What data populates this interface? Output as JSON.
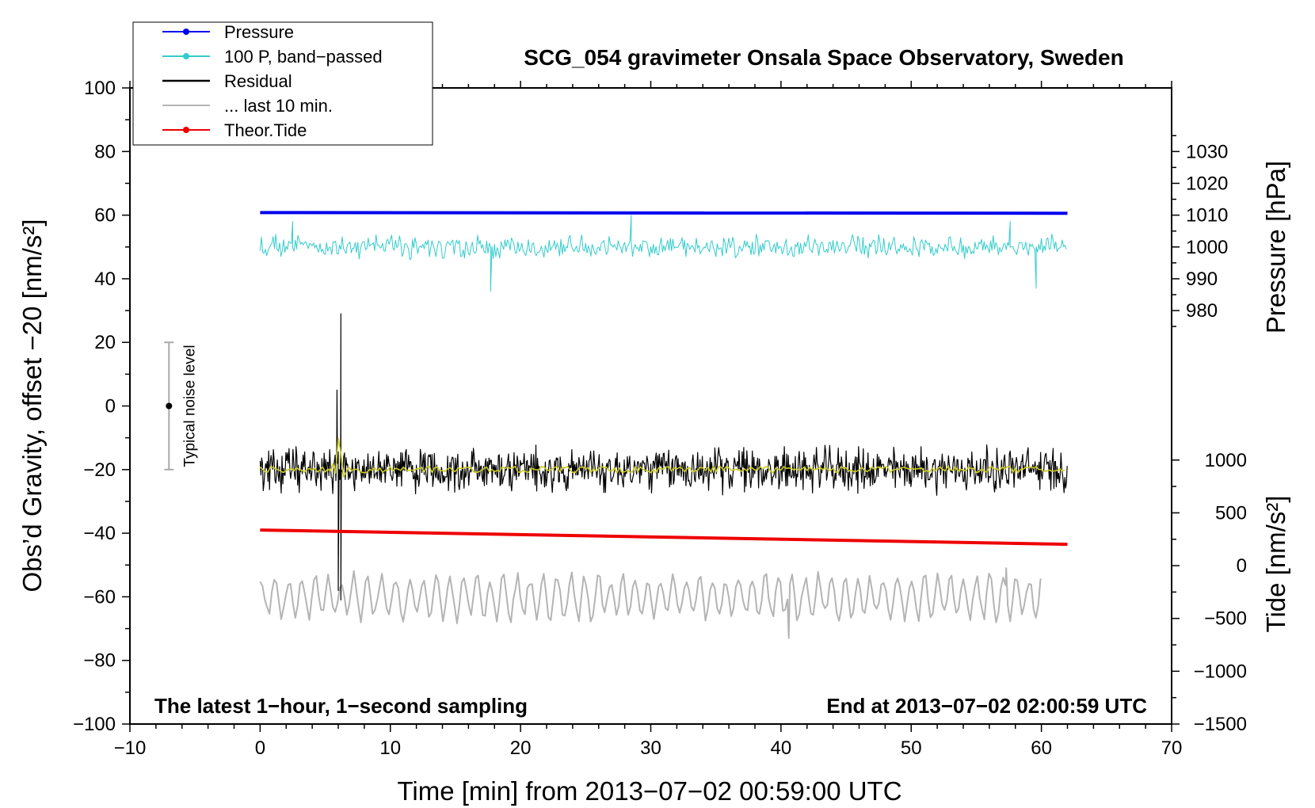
{
  "chart_data": {
    "type": "line",
    "title": "SCG_054 gravimeter Onsala Space Observatory, Sweden",
    "xlabel": "Time [min] from 2013−07−02 00:59:00 UTC",
    "ylabel_left": "Obs’d Gravity, offset −20 [nm/s²]",
    "ylabel_right_top": "Pressure [hPa]",
    "ylabel_right_bottom": "Tide [nm/s²]",
    "xlim": [
      -10,
      70
    ],
    "ylim": [
      -100,
      100
    ],
    "x_ticks": [
      -10,
      0,
      10,
      20,
      30,
      40,
      50,
      60,
      70
    ],
    "x_tick_labels": [
      "−10",
      "0",
      "10",
      "20",
      "30",
      "40",
      "50",
      "60",
      "70"
    ],
    "y_ticks": [
      -100,
      -80,
      -60,
      -40,
      -20,
      0,
      20,
      40,
      60,
      80,
      100
    ],
    "y_tick_labels": [
      "−100",
      "−80",
      "−60",
      "−40",
      "−20",
      "0",
      "20",
      "40",
      "60",
      "80",
      "100"
    ],
    "pressure_axis": {
      "ticks": [
        980,
        990,
        1000,
        1010,
        1020,
        1030
      ],
      "tick_labels": [
        "980",
        "990",
        "1000",
        "1010",
        "1020",
        "1030"
      ],
      "map": {
        "value_a": 1010,
        "y_a": 60,
        "value_b": 1030,
        "y_b": 80
      }
    },
    "tide_axis": {
      "ticks": [
        -1500,
        -1000,
        -500,
        0,
        500,
        1000
      ],
      "tick_labels": [
        "−1500",
        "−1000",
        "−500",
        "0",
        "500",
        "1000"
      ],
      "map": {
        "value_a": -1500,
        "y_a": -100,
        "value_b": 1000,
        "y_b": -17
      }
    },
    "series": [
      {
        "name": "Pressure",
        "color": "#0000ee",
        "kind": "line",
        "x_range": [
          0,
          62
        ],
        "y_start": 60.8,
        "y_end": 60.6
      },
      {
        "name": "100 P, band−passed",
        "color": "#33cccc",
        "kind": "noise",
        "x_range": [
          0,
          62
        ],
        "center": 50,
        "amplitude": 3.5,
        "spikes": [
          {
            "x": 17.7,
            "y": 36
          },
          {
            "x": 28.5,
            "y": 60
          },
          {
            "x": 59.6,
            "y": 37
          },
          {
            "x": 2.5,
            "y": 58
          },
          {
            "x": 57.6,
            "y": 58
          }
        ]
      },
      {
        "name": "Residual",
        "color": "#000000",
        "kind": "noise",
        "x_range": [
          0,
          62
        ],
        "center": -20,
        "amplitude": 7,
        "spikes": [
          {
            "x": 6.2,
            "y": 29
          },
          {
            "x": 6.2,
            "y": -61
          },
          {
            "x": 5.9,
            "y": 5
          },
          {
            "x": 6.0,
            "y": -58
          }
        ]
      },
      {
        "name": "... last 10 min.",
        "color": "#b4b4b4",
        "kind": "noise",
        "x_range": [
          0,
          60
        ],
        "center": -60,
        "amplitude": 7,
        "spikes": [
          {
            "x": 57.3,
            "y": -51
          },
          {
            "x": 40.6,
            "y": -73
          }
        ]
      },
      {
        "name": "Theor.Tide",
        "color": "#ee0000",
        "kind": "line",
        "x_range": [
          0,
          62
        ],
        "y_start": -39,
        "y_end": -43.5
      },
      {
        "name": "Smoothed residual",
        "color": "#cccc22",
        "kind": "noise",
        "x_range": [
          0,
          62
        ],
        "center": -20,
        "amplitude": 1,
        "in_legend": false
      }
    ],
    "noise_level": {
      "label": "Typical noise level",
      "x": -7,
      "center": 0,
      "low": -20,
      "high": 20
    },
    "annotation_left": "The latest 1−hour, 1−second sampling",
    "annotation_right": "End at 2013−07−02 02:00:59 UTC",
    "legend_position": "top-left"
  }
}
